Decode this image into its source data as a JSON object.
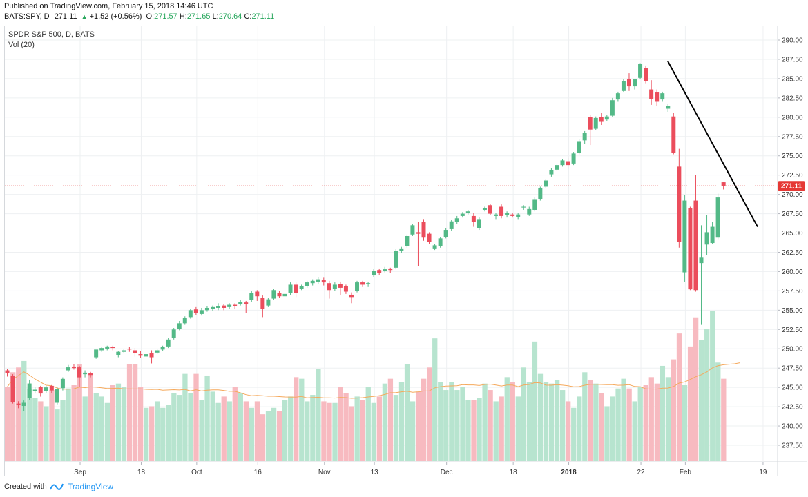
{
  "header": {
    "published": "Published on TradingView.com, February 15, 2018 14:46 UTC",
    "symbol": "BATS:SPY, D",
    "last": "271.11",
    "change": "+1.52 (+0.56%)",
    "o_label": "O:",
    "o": "271.57",
    "h_label": "H:",
    "h": "271.65",
    "l_label": "L:",
    "l": "270.64",
    "c_label": "C:",
    "c": "271.11"
  },
  "legend": {
    "symbol_desc": "SPDR S&P 500, D, BATS",
    "volume": "Vol (20)"
  },
  "footer": {
    "created": "Created with",
    "brand": "TradingView"
  },
  "colors": {
    "up": "#53b987",
    "down": "#eb4d5c",
    "vol_up": "#b7e4cf",
    "vol_down": "#f7bac0",
    "ma": "#f5a95c",
    "price_line": "#e53935",
    "grid": "#eef0f2"
  },
  "icons": {
    "tradingview": "tradingview-logo-icon"
  },
  "chart_data": {
    "type": "candlestick",
    "title": "SPDR S&P 500, D, BATS",
    "x_tick_labels": [
      "Sep",
      "18",
      "Oct",
      "16",
      "Nov",
      "13",
      "Dec",
      "18",
      "2018",
      "22",
      "Feb",
      "19"
    ],
    "y_tick_labels": [
      "237.50",
      "240.00",
      "242.50",
      "245.00",
      "247.50",
      "250.00",
      "252.50",
      "255.00",
      "257.50",
      "260.00",
      "262.50",
      "265.00",
      "267.50",
      "270.00",
      "272.50",
      "275.00",
      "277.50",
      "280.00",
      "282.50",
      "285.00",
      "287.50",
      "290.00"
    ],
    "y_range": [
      235.0,
      291.0
    ],
    "last_price": "271.11",
    "trendline": [
      [
        287.3,
        0
      ],
      [
        265.8,
        38
      ]
    ],
    "volume_ma_period": 20,
    "series": [
      {
        "o": 247.2,
        "h": 247.4,
        "c": 246.8,
        "l": 246.4
      },
      {
        "o": 246.5,
        "h": 246.7,
        "c": 243.1,
        "l": 242.9
      },
      {
        "o": 242.9,
        "h": 243.2,
        "c": 242.7,
        "l": 242.3
      },
      {
        "o": 242.6,
        "h": 243.3,
        "c": 243.0,
        "l": 241.9
      },
      {
        "o": 243.6,
        "h": 246.0,
        "c": 245.5,
        "l": 243.4
      },
      {
        "o": 244.5,
        "h": 245.0,
        "c": 244.7,
        "l": 244.2
      },
      {
        "o": 245.1,
        "h": 245.2,
        "c": 244.2,
        "l": 243.8
      },
      {
        "o": 244.5,
        "h": 245.2,
        "c": 245.0,
        "l": 244.3
      },
      {
        "o": 245.2,
        "h": 245.3,
        "c": 244.6,
        "l": 244.3
      },
      {
        "o": 243.0,
        "h": 245.0,
        "c": 244.8,
        "l": 242.8
      },
      {
        "o": 244.9,
        "h": 246.3,
        "c": 246.1,
        "l": 244.6
      },
      {
        "o": 247.2,
        "h": 247.9,
        "c": 247.6,
        "l": 247.0
      },
      {
        "o": 247.7,
        "h": 248.0,
        "c": 247.5,
        "l": 247.3
      },
      {
        "o": 247.6,
        "h": 247.8,
        "c": 246.3,
        "l": 245.1
      },
      {
        "o": 246.7,
        "h": 247.2,
        "c": 246.9,
        "l": 246.3
      },
      {
        "o": 246.8,
        "h": 247.0,
        "c": 246.6,
        "l": 246.3
      },
      {
        "o": 248.9,
        "h": 249.6,
        "c": 249.9,
        "l": 248.7
      },
      {
        "o": 249.8,
        "h": 250.2,
        "c": 250.1,
        "l": 249.6
      },
      {
        "o": 250.0,
        "h": 250.4,
        "c": 250.3,
        "l": 249.8
      },
      {
        "o": 250.2,
        "h": 250.4,
        "c": 250.1,
        "l": 249.8
      },
      {
        "o": 249.2,
        "h": 249.7,
        "c": 249.6,
        "l": 248.9
      },
      {
        "o": 249.6,
        "h": 250.0,
        "c": 249.8,
        "l": 249.4
      },
      {
        "o": 250.0,
        "h": 250.2,
        "c": 249.9,
        "l": 249.6
      },
      {
        "o": 249.8,
        "h": 250.1,
        "c": 249.4,
        "l": 249.0
      },
      {
        "o": 249.3,
        "h": 249.7,
        "c": 249.1,
        "l": 248.8
      },
      {
        "o": 249.0,
        "h": 249.5,
        "c": 249.3,
        "l": 248.8
      },
      {
        "o": 249.4,
        "h": 249.8,
        "c": 248.9,
        "l": 248.1
      },
      {
        "o": 249.5,
        "h": 250.0,
        "c": 249.8,
        "l": 249.3
      },
      {
        "o": 249.9,
        "h": 250.4,
        "c": 250.2,
        "l": 249.7
      },
      {
        "o": 250.3,
        "h": 251.4,
        "c": 251.2,
        "l": 250.1
      },
      {
        "o": 251.4,
        "h": 252.7,
        "c": 252.5,
        "l": 251.2
      },
      {
        "o": 252.6,
        "h": 253.6,
        "c": 253.3,
        "l": 252.4
      },
      {
        "o": 253.3,
        "h": 254.2,
        "c": 254.0,
        "l": 253.1
      },
      {
        "o": 254.1,
        "h": 255.2,
        "c": 255.0,
        "l": 253.9
      },
      {
        "o": 255.1,
        "h": 255.4,
        "c": 254.6,
        "l": 254.4
      },
      {
        "o": 254.5,
        "h": 255.3,
        "c": 255.0,
        "l": 254.3
      },
      {
        "o": 255.0,
        "h": 255.5,
        "c": 255.3,
        "l": 254.8
      },
      {
        "o": 255.2,
        "h": 255.6,
        "c": 255.4,
        "l": 254.9
      },
      {
        "o": 255.3,
        "h": 255.9,
        "c": 255.5,
        "l": 255.0
      },
      {
        "o": 255.6,
        "h": 255.8,
        "c": 255.3,
        "l": 255.0
      },
      {
        "o": 255.4,
        "h": 255.9,
        "c": 255.7,
        "l": 255.2
      },
      {
        "o": 255.7,
        "h": 255.9,
        "c": 255.5,
        "l": 255.2
      },
      {
        "o": 255.8,
        "h": 256.3,
        "c": 256.1,
        "l": 255.6
      },
      {
        "o": 256.0,
        "h": 256.2,
        "c": 255.8,
        "l": 254.6
      },
      {
        "o": 256.3,
        "h": 257.5,
        "c": 257.2,
        "l": 256.1
      },
      {
        "o": 257.4,
        "h": 257.6,
        "c": 256.8,
        "l": 256.2
      },
      {
        "o": 256.6,
        "h": 256.9,
        "c": 255.2,
        "l": 254.1
      },
      {
        "o": 255.6,
        "h": 256.6,
        "c": 256.4,
        "l": 255.4
      },
      {
        "o": 256.5,
        "h": 257.8,
        "c": 257.6,
        "l": 256.3
      },
      {
        "o": 257.2,
        "h": 257.5,
        "c": 256.8,
        "l": 256.6
      },
      {
        "o": 256.8,
        "h": 257.3,
        "c": 257.1,
        "l": 256.6
      },
      {
        "o": 257.2,
        "h": 258.6,
        "c": 258.3,
        "l": 257.0
      },
      {
        "o": 258.3,
        "h": 258.6,
        "c": 257.2,
        "l": 256.7
      },
      {
        "o": 257.8,
        "h": 258.3,
        "c": 258.1,
        "l": 257.6
      },
      {
        "o": 258.1,
        "h": 258.8,
        "c": 258.6,
        "l": 257.9
      },
      {
        "o": 258.5,
        "h": 259.0,
        "c": 258.8,
        "l": 258.2
      },
      {
        "o": 258.7,
        "h": 259.3,
        "c": 259.0,
        "l": 258.4
      },
      {
        "o": 258.9,
        "h": 259.2,
        "c": 258.6,
        "l": 258.2
      },
      {
        "o": 258.5,
        "h": 258.8,
        "c": 257.6,
        "l": 256.5
      },
      {
        "o": 257.8,
        "h": 258.6,
        "c": 258.3,
        "l": 257.5
      },
      {
        "o": 258.4,
        "h": 258.7,
        "c": 257.9,
        "l": 257.0
      },
      {
        "o": 258.1,
        "h": 258.3,
        "c": 257.4,
        "l": 257.1
      },
      {
        "o": 257.0,
        "h": 257.3,
        "c": 256.7,
        "l": 255.9
      },
      {
        "o": 257.5,
        "h": 258.8,
        "c": 258.6,
        "l": 257.3
      },
      {
        "o": 258.6,
        "h": 258.8,
        "c": 258.3,
        "l": 258.0
      },
      {
        "o": 258.4,
        "h": 258.7,
        "c": 258.5,
        "l": 258.0
      },
      {
        "o": 259.5,
        "h": 260.3,
        "c": 260.1,
        "l": 259.3
      },
      {
        "o": 260.2,
        "h": 260.4,
        "c": 259.8,
        "l": 259.5
      },
      {
        "o": 260.1,
        "h": 260.6,
        "c": 260.3,
        "l": 259.9
      },
      {
        "o": 260.4,
        "h": 260.5,
        "c": 260.2,
        "l": 259.8
      },
      {
        "o": 260.5,
        "h": 262.9,
        "c": 262.7,
        "l": 260.3
      },
      {
        "o": 262.7,
        "h": 263.2,
        "c": 263.0,
        "l": 262.4
      },
      {
        "o": 263.3,
        "h": 264.8,
        "c": 264.6,
        "l": 263.1
      },
      {
        "o": 264.8,
        "h": 266.2,
        "c": 266.0,
        "l": 264.6
      },
      {
        "o": 265.1,
        "h": 266.4,
        "c": 264.9,
        "l": 260.7
      },
      {
        "o": 266.4,
        "h": 266.8,
        "c": 264.4,
        "l": 264.0
      },
      {
        "o": 264.9,
        "h": 265.1,
        "c": 263.8,
        "l": 263.6
      },
      {
        "o": 263.0,
        "h": 263.6,
        "c": 263.4,
        "l": 262.8
      },
      {
        "o": 263.3,
        "h": 264.5,
        "c": 264.3,
        "l": 263.1
      },
      {
        "o": 264.5,
        "h": 265.6,
        "c": 265.4,
        "l": 264.3
      },
      {
        "o": 265.5,
        "h": 266.7,
        "c": 266.5,
        "l": 265.3
      },
      {
        "o": 266.4,
        "h": 267.2,
        "c": 266.9,
        "l": 266.2
      },
      {
        "o": 267.2,
        "h": 267.7,
        "c": 267.5,
        "l": 267.0
      },
      {
        "o": 267.6,
        "h": 268.0,
        "c": 267.8,
        "l": 267.4
      },
      {
        "o": 267.2,
        "h": 267.6,
        "c": 266.4,
        "l": 265.8
      },
      {
        "o": 265.6,
        "h": 267.0,
        "c": 266.8,
        "l": 265.4
      },
      {
        "o": 268.0,
        "h": 268.4,
        "c": 268.2,
        "l": 267.8
      },
      {
        "o": 268.6,
        "h": 268.8,
        "c": 267.5,
        "l": 267.3
      },
      {
        "o": 267.2,
        "h": 267.6,
        "c": 267.4,
        "l": 266.8
      },
      {
        "o": 268.4,
        "h": 268.7,
        "c": 267.2,
        "l": 266.9
      },
      {
        "o": 267.3,
        "h": 267.8,
        "c": 267.6,
        "l": 267.0
      },
      {
        "o": 267.4,
        "h": 267.6,
        "c": 267.2,
        "l": 267.0
      },
      {
        "o": 267.1,
        "h": 267.6,
        "c": 267.4,
        "l": 266.8
      },
      {
        "o": 268.3,
        "h": 268.6,
        "c": 268.4,
        "l": 268.0
      },
      {
        "o": 267.4,
        "h": 268.4,
        "c": 268.1,
        "l": 267.2
      },
      {
        "o": 268.0,
        "h": 269.6,
        "c": 269.3,
        "l": 267.8
      },
      {
        "o": 269.4,
        "h": 271.0,
        "c": 270.8,
        "l": 269.2
      },
      {
        "o": 271.0,
        "h": 272.0,
        "c": 271.8,
        "l": 270.8
      },
      {
        "o": 272.6,
        "h": 273.4,
        "c": 273.1,
        "l": 272.3
      },
      {
        "o": 273.2,
        "h": 274.0,
        "c": 273.8,
        "l": 273.0
      },
      {
        "o": 273.8,
        "h": 274.6,
        "c": 274.4,
        "l": 273.6
      },
      {
        "o": 274.3,
        "h": 274.7,
        "c": 273.8,
        "l": 273.3
      },
      {
        "o": 274.0,
        "h": 275.5,
        "c": 275.3,
        "l": 273.8
      },
      {
        "o": 275.4,
        "h": 277.2,
        "c": 276.9,
        "l": 275.2
      },
      {
        "o": 277.0,
        "h": 278.2,
        "c": 278.0,
        "l": 276.5
      },
      {
        "o": 280.0,
        "h": 280.3,
        "c": 278.4,
        "l": 276.4
      },
      {
        "o": 278.5,
        "h": 280.1,
        "c": 279.9,
        "l": 278.3
      },
      {
        "o": 280.0,
        "h": 280.6,
        "c": 279.4,
        "l": 279.0
      },
      {
        "o": 279.7,
        "h": 280.3,
        "c": 280.1,
        "l": 279.5
      },
      {
        "o": 280.2,
        "h": 282.5,
        "c": 282.2,
        "l": 280.0
      },
      {
        "o": 282.3,
        "h": 283.3,
        "c": 283.1,
        "l": 282.0
      },
      {
        "o": 283.4,
        "h": 284.9,
        "c": 284.7,
        "l": 283.2
      },
      {
        "o": 284.9,
        "h": 285.7,
        "c": 284.0,
        "l": 283.4
      },
      {
        "o": 284.0,
        "h": 284.7,
        "c": 284.9,
        "l": 283.6
      },
      {
        "o": 285.1,
        "h": 287.0,
        "c": 286.9,
        "l": 284.9
      },
      {
        "o": 286.4,
        "h": 286.7,
        "c": 284.7,
        "l": 284.4
      },
      {
        "o": 283.6,
        "h": 284.8,
        "c": 282.4,
        "l": 281.6
      },
      {
        "o": 283.2,
        "h": 283.6,
        "c": 282.0,
        "l": 281.5
      },
      {
        "o": 282.3,
        "h": 283.3,
        "c": 283.1,
        "l": 282.0
      },
      {
        "o": 281.1,
        "h": 281.7,
        "c": 281.5,
        "l": 280.7
      },
      {
        "o": 280.1,
        "h": 280.6,
        "c": 275.4,
        "l": 275.2
      },
      {
        "o": 273.6,
        "h": 275.9,
        "c": 263.8,
        "l": 263.1
      },
      {
        "o": 259.9,
        "h": 269.9,
        "c": 269.2,
        "l": 258.7
      },
      {
        "o": 268.2,
        "h": 268.4,
        "c": 257.7,
        "l": 257.6
      },
      {
        "o": 269.2,
        "h": 272.5,
        "c": 257.6,
        "l": 257.4
      },
      {
        "o": 261.1,
        "h": 266.0,
        "c": 261.8,
        "l": 253.1
      },
      {
        "o": 263.5,
        "h": 267.3,
        "c": 265.1,
        "l": 262.1
      },
      {
        "o": 263.7,
        "h": 266.4,
        "c": 265.8,
        "l": 263.6
      },
      {
        "o": 264.4,
        "h": 270.1,
        "c": 269.6,
        "l": 264.2
      },
      {
        "o": 271.57,
        "h": 271.65,
        "c": 271.11,
        "l": 270.64
      }
    ],
    "volume_ratio": [
      0.46,
      0.55,
      0.58,
      0.62,
      0.45,
      0.39,
      0.37,
      0.34,
      0.44,
      0.32,
      0.38,
      0.45,
      0.47,
      0.6,
      0.4,
      0.54,
      0.42,
      0.4,
      0.36,
      0.47,
      0.48,
      0.46,
      0.6,
      0.6,
      0.46,
      0.33,
      0.34,
      0.37,
      0.33,
      0.35,
      0.42,
      0.41,
      0.54,
      0.42,
      0.54,
      0.38,
      0.53,
      0.43,
      0.36,
      0.4,
      0.37,
      0.46,
      0.42,
      0.37,
      0.33,
      0.37,
      0.29,
      0.31,
      0.33,
      0.31,
      0.38,
      0.4,
      0.52,
      0.51,
      0.37,
      0.41,
      0.57,
      0.37,
      0.36,
      0.36,
      0.46,
      0.42,
      0.34,
      0.4,
      0.38,
      0.46,
      0.36,
      0.4,
      0.48,
      0.51,
      0.41,
      0.49,
      0.6,
      0.37,
      0.43,
      0.51,
      0.58,
      0.76,
      0.49,
      0.44,
      0.49,
      0.44,
      0.46,
      0.38,
      0.38,
      0.39,
      0.48,
      0.44,
      0.37,
      0.4,
      0.52,
      0.49,
      0.4,
      0.58,
      0.49,
      0.74,
      0.54,
      0.49,
      0.48,
      0.5,
      0.44,
      0.37,
      0.33,
      0.4,
      0.55,
      0.5,
      0.48,
      0.42,
      0.34,
      0.4,
      0.45,
      0.51,
      0.45,
      0.37,
      0.46,
      0.47,
      0.52,
      0.48,
      0.59,
      0.52,
      0.63,
      0.79,
      0.47,
      0.71,
      0.89,
      0.75,
      0.82,
      0.93,
      0.61,
      0.51,
      0.52,
      0.56,
      0.58
    ]
  }
}
